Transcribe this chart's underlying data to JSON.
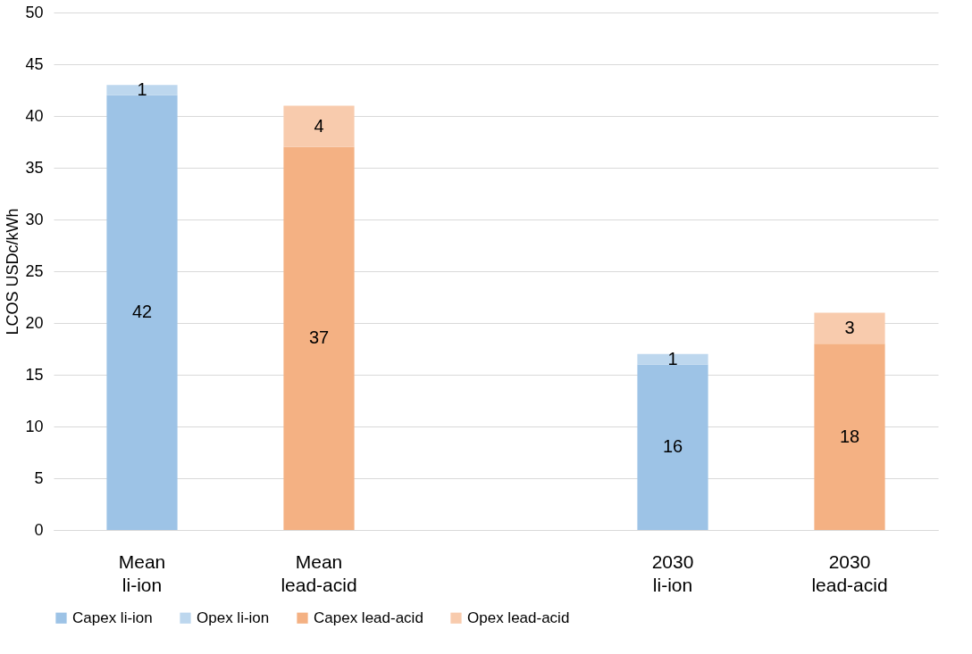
{
  "chart_data": {
    "type": "bar",
    "stacked": true,
    "ylabel": "LCOS USDc/kWh",
    "categories": [
      "Mean\nli-ion",
      "Mean\nlead-acid",
      null,
      "2030\nli-ion",
      "2030\nlead-acid"
    ],
    "series": [
      {
        "name": "Capex li-ion",
        "color": "#9dc3e6",
        "values": [
          42,
          null,
          null,
          16,
          null
        ]
      },
      {
        "name": "Opex li-ion",
        "color": "#bdd7ee",
        "values": [
          1,
          null,
          null,
          1,
          null
        ]
      },
      {
        "name": "Capex lead-acid",
        "color": "#f4b183",
        "values": [
          null,
          37,
          null,
          null,
          18
        ]
      },
      {
        "name": "Opex lead-acid",
        "color": "#f8cbad",
        "values": [
          null,
          4,
          null,
          null,
          3
        ]
      }
    ],
    "ylim": [
      0,
      50
    ],
    "yticks": [
      0,
      5,
      10,
      15,
      20,
      25,
      30,
      35,
      40,
      45,
      50
    ],
    "grid": "y",
    "legend": "bottom",
    "data_labels": true
  }
}
